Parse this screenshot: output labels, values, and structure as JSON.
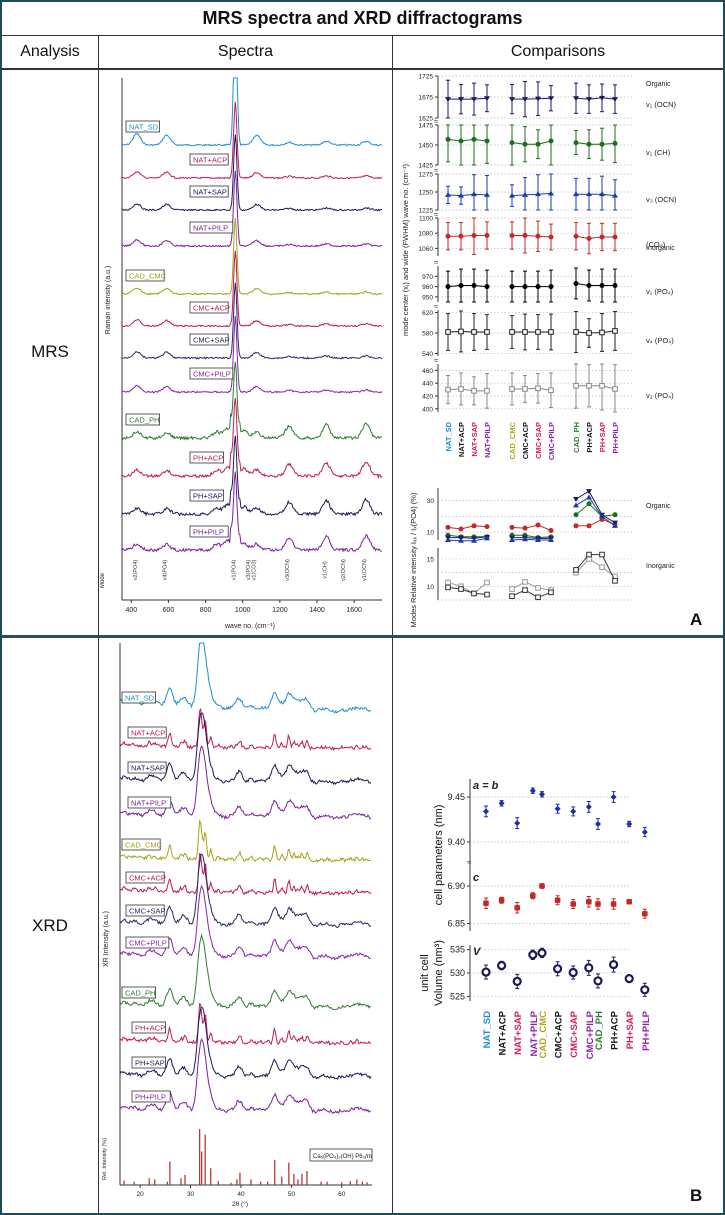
{
  "table": {
    "title": "MRS spectra and XRD diffractograms",
    "columns": [
      "Analysis",
      "Spectra",
      "Comparisons"
    ],
    "rows": [
      {
        "analysis": "MRS",
        "panel": "A"
      },
      {
        "analysis": "XRD",
        "panel": "B"
      }
    ]
  },
  "colors": {
    "NAT_SD": "#1f8fcf",
    "NAT+ACP": "#c2185b",
    "NAT+SAP": "#1a1a55",
    "NAT+PILP": "#7b1fa2",
    "CAD_CMC": "#a3a31a",
    "CMC+ACP": "#c2185b",
    "CMC+SAP": "#2a2a66",
    "CMC+PILP": "#8e24aa",
    "CAD_PH": "#2e7d32",
    "PH+ACP": "#c2185b",
    "PH+SAP": "#1a1a55",
    "PH+PILP": "#7b1fa2",
    "label_NAT_SD": "#1f8fcf",
    "label_ACP": "#1a1a1a",
    "label_SAP": "#d81b60",
    "label_PILP": "#8e24aa",
    "label_CAD_CMC": "#b3a51a",
    "label_CAD_PH": "#2e7d32"
  },
  "chart_data": [
    {
      "id": "mrs-spectra",
      "type": "line",
      "title": "",
      "xlabel": "wave no. (cm⁻¹)",
      "ylabel": "Raman intensity (a.u.)",
      "xlim": [
        350,
        1750
      ],
      "xticks": [
        400,
        600,
        800,
        1000,
        1200,
        1400,
        1600
      ],
      "series_labels": [
        "NAT_SD",
        "NAT+ACP",
        "NAT+SAP",
        "NAT+PILP",
        "CAD_CMC",
        "CMC+ACP",
        "CMC+SAP",
        "CMC+PILP",
        "CAD_PH",
        "PH+ACP",
        "PH+SAP",
        "PH+PILP"
      ],
      "peaks": {
        "mineral": [
          {
            "x": 430,
            "h": 0.25
          },
          {
            "x": 590,
            "h": 0.22
          },
          {
            "x": 960,
            "h": 1.0
          },
          {
            "x": 1075,
            "h": 0.22
          },
          {
            "x": 1250,
            "h": 0.06
          },
          {
            "x": 1450,
            "h": 0.08
          },
          {
            "x": 1665,
            "h": 0.08
          }
        ],
        "organic": [
          {
            "x": 430,
            "h": 0.25
          },
          {
            "x": 590,
            "h": 0.22
          },
          {
            "x": 860,
            "h": 0.25
          },
          {
            "x": 920,
            "h": 0.4
          },
          {
            "x": 960,
            "h": 1.0
          },
          {
            "x": 1005,
            "h": 0.3
          },
          {
            "x": 1075,
            "h": 0.25
          },
          {
            "x": 1250,
            "h": 0.5
          },
          {
            "x": 1450,
            "h": 0.55
          },
          {
            "x": 1665,
            "h": 0.6
          }
        ]
      },
      "mode_label": "Mode",
      "mode_markers": [
        {
          "x": 430,
          "label": "v2(PO4)"
        },
        {
          "x": 590,
          "label": "v4(PO4)"
        },
        {
          "x": 960,
          "label": "v1(PO4)"
        },
        {
          "x": 1040,
          "label": "v3(PO4)"
        },
        {
          "x": 1070,
          "label": "v1(CO3)"
        },
        {
          "x": 1250,
          "label": "v3(OCN)"
        },
        {
          "x": 1450,
          "label": "v1(CH)"
        },
        {
          "x": 1550,
          "label": "v2(OCN)"
        },
        {
          "x": 1665,
          "label": "v1(OCN)"
        }
      ]
    },
    {
      "id": "mrs-mode-centers",
      "type": "scatter",
      "ylabel": "mode center (xⱼ) and wide (FWHM) wave no. (cm⁻¹)",
      "categories": [
        "NAT_SD",
        "NAT+ACP",
        "NAT+SAP",
        "NAT+PILP",
        "CAD_CMC",
        "CMC+ACP",
        "CMC+SAP",
        "CMC+PILP",
        "CAD_PH",
        "PH+ACP",
        "PH+SAP",
        "PH+PILP"
      ],
      "group_headers": {
        "organic": "Organic",
        "inorganic": "Inorganic"
      },
      "panels": [
        {
          "name": "v₁ (OCN)",
          "color": "#1a1a66",
          "marker": "triangle-down",
          "ylim": [
            1625,
            1725
          ],
          "yticks": [
            1625,
            1675,
            1725
          ],
          "values": [
            1670,
            1670,
            1670,
            1672,
            1670,
            1670,
            1671,
            1672,
            1672,
            1670,
            1673,
            1670
          ],
          "errors": [
            45,
            35,
            38,
            32,
            35,
            42,
            40,
            30,
            36,
            34,
            33,
            34
          ]
        },
        {
          "name": "v₁ (CH)",
          "color": "#1b6e1b",
          "marker": "circle",
          "ylim": [
            1425,
            1475
          ],
          "yticks": [
            1425,
            1450,
            1475
          ],
          "values": [
            1457,
            1455,
            1457,
            1455,
            1453,
            1451,
            1451,
            1455,
            1453,
            1451,
            1451,
            1452
          ],
          "errors": [
            28,
            33,
            35,
            28,
            37,
            22,
            18,
            30,
            15,
            18,
            20,
            24
          ]
        },
        {
          "name": "v₃ (OCN)",
          "color": "#1a3ca8",
          "marker": "triangle-up",
          "ylim": [
            1225,
            1275
          ],
          "yticks": [
            1225,
            1250,
            1275
          ],
          "values": [
            1246,
            1245,
            1247,
            1246,
            1245,
            1246,
            1247,
            1248,
            1247,
            1247,
            1247,
            1245
          ],
          "errors": [
            12,
            12,
            27,
            27,
            15,
            24,
            27,
            30,
            22,
            22,
            25,
            22
          ]
        },
        {
          "name": "(CO₃)",
          "color": "#c62828",
          "marker": "circle",
          "ylim": [
            1050,
            1100
          ],
          "yticks": [
            1060,
            1080,
            1100
          ],
          "values": [
            1076,
            1076,
            1077,
            1077,
            1077,
            1077,
            1076,
            1075,
            1076,
            1073,
            1075,
            1075
          ],
          "errors": [
            18,
            18,
            25,
            18,
            18,
            23,
            20,
            17,
            18,
            20,
            18,
            18
          ]
        },
        {
          "name": "v₁ (PO₄)",
          "color": "#000000",
          "marker": "circle",
          "ylim": [
            945,
            980
          ],
          "yticks": [
            950,
            960,
            970
          ],
          "values": [
            960,
            961,
            961,
            960,
            960,
            960,
            960,
            960,
            963,
            961,
            961,
            961
          ],
          "errors": [
            15,
            16,
            16,
            16,
            15,
            15,
            15,
            16,
            15,
            15,
            16,
            16
          ]
        },
        {
          "name": "v₄ (PO₄)",
          "color": "#222222",
          "marker": "square-open",
          "ylim": [
            535,
            625
          ],
          "yticks": [
            540,
            580,
            620
          ],
          "values": [
            582,
            583,
            582,
            582,
            582,
            582,
            582,
            582,
            582,
            580,
            581,
            584
          ],
          "errors": [
            36,
            40,
            36,
            34,
            32,
            35,
            34,
            35,
            40,
            28,
            37,
            38
          ]
        },
        {
          "name": "v₂ (PO₄)",
          "color": "#888888",
          "marker": "square-open",
          "ylim": [
            395,
            470
          ],
          "yticks": [
            400,
            420,
            440,
            460
          ],
          "values": [
            430,
            431,
            428,
            428,
            431,
            431,
            432,
            429,
            436,
            436,
            436,
            431
          ],
          "errors": [
            22,
            25,
            22,
            27,
            25,
            21,
            23,
            27,
            35,
            33,
            38,
            38
          ]
        }
      ]
    },
    {
      "id": "mrs-relative-intensity",
      "type": "line",
      "ylabel": "Modes Relative intensity Iₓₓ / Iₓ(PO4) (%)",
      "categories": [
        "NAT_SD",
        "NAT+ACP",
        "NAT+SAP",
        "NAT+PILP",
        "CAD_CMC",
        "CMC+ACP",
        "CMC+SAP",
        "CMC+PILP",
        "CAD_PH",
        "PH+ACP",
        "PH+SAP",
        "PH+PILP"
      ],
      "panels": [
        {
          "name": "Organic",
          "ylim": [
            5,
            38
          ],
          "yticks": [
            10,
            30
          ],
          "grid": [
            10,
            20,
            30
          ],
          "series": [
            {
              "name": "CO3",
              "color": "#c62828",
              "marker": "circle",
              "values": [
                13,
                12,
                14,
                13.5,
                13,
                12.5,
                14.5,
                11,
                14,
                14,
                18,
                15
              ]
            },
            {
              "name": "v1(CH)",
              "color": "#1b6e1b",
              "marker": "circle",
              "values": [
                8,
                7,
                7,
                7,
                8,
                8,
                6.5,
                7,
                21,
                28,
                20,
                21
              ]
            },
            {
              "name": "v1(OCN)",
              "color": "#1a1a66",
              "marker": "triangle-down",
              "values": [
                6.5,
                6.5,
                6,
                7,
                6.5,
                6.5,
                6,
                6,
                31,
                36,
                21,
                16
              ]
            },
            {
              "name": "v3(OCN)",
              "color": "#1a3ca8",
              "marker": "triangle-up",
              "values": [
                5,
                4.5,
                4.5,
                6,
                5,
                5.5,
                5,
                5,
                27,
                32,
                20,
                14
              ]
            }
          ]
        },
        {
          "name": "Inorganic",
          "ylim": [
            7.5,
            17
          ],
          "yticks": [
            10,
            15
          ],
          "grid": [
            7.5,
            10,
            12.5,
            15
          ],
          "series": [
            {
              "name": "v2(PO4)",
              "color": "#999999",
              "marker": "square-open",
              "values": [
                10.7,
                10,
                8.7,
                10.7,
                9.5,
                10.8,
                9.7,
                9.3,
                12.5,
                15,
                13.5,
                11.8
              ]
            },
            {
              "name": "v4(PO4)",
              "color": "#333333",
              "marker": "square-open",
              "values": [
                9.8,
                9.5,
                8.7,
                8.5,
                8.2,
                9.3,
                8,
                8.9,
                13,
                15.8,
                15.8,
                11
              ]
            }
          ]
        }
      ]
    },
    {
      "id": "xrd-diffractograms",
      "type": "line",
      "xlabel": "2θ (°)",
      "ylabel": "XR Intensity (a.u.)",
      "xlim": [
        16,
        66
      ],
      "xticks": [
        20,
        30,
        40,
        50,
        60
      ],
      "series_labels": [
        "NAT_SD",
        "NAT+ACP",
        "NAT+SAP",
        "NAT+PILP",
        "CAD_CMC",
        "CMC+ACP",
        "CMC+SAP",
        "CMC+PILP",
        "CAD_PH",
        "PH+ACP",
        "PH+SAP",
        "PH+PILP"
      ],
      "reference": {
        "label": "Ca₅(PO₄)₃(OH) P6₃/m",
        "ylabel": "Rel. Intensity (%)",
        "lines": [
          {
            "x": 16.8,
            "h": 0.08
          },
          {
            "x": 18.8,
            "h": 0.06
          },
          {
            "x": 21.8,
            "h": 0.12
          },
          {
            "x": 22.9,
            "h": 0.1
          },
          {
            "x": 25.4,
            "h": 0.06
          },
          {
            "x": 25.9,
            "h": 0.42
          },
          {
            "x": 28.1,
            "h": 0.12
          },
          {
            "x": 28.9,
            "h": 0.18
          },
          {
            "x": 31.8,
            "h": 1.0
          },
          {
            "x": 32.2,
            "h": 0.6
          },
          {
            "x": 32.9,
            "h": 0.9
          },
          {
            "x": 34.0,
            "h": 0.3
          },
          {
            "x": 35.5,
            "h": 0.07
          },
          {
            "x": 38.0,
            "h": 0.04
          },
          {
            "x": 39.2,
            "h": 0.1
          },
          {
            "x": 39.8,
            "h": 0.22
          },
          {
            "x": 42.0,
            "h": 0.1
          },
          {
            "x": 43.9,
            "h": 0.06
          },
          {
            "x": 45.3,
            "h": 0.06
          },
          {
            "x": 46.7,
            "h": 0.45
          },
          {
            "x": 48.1,
            "h": 0.15
          },
          {
            "x": 49.5,
            "h": 0.4
          },
          {
            "x": 50.5,
            "h": 0.2
          },
          {
            "x": 51.3,
            "h": 0.1
          },
          {
            "x": 52.1,
            "h": 0.2
          },
          {
            "x": 53.1,
            "h": 0.25
          },
          {
            "x": 55.9,
            "h": 0.06
          },
          {
            "x": 57.1,
            "h": 0.06
          },
          {
            "x": 60.0,
            "h": 0.05
          },
          {
            "x": 61.7,
            "h": 0.07
          },
          {
            "x": 63.0,
            "h": 0.1
          },
          {
            "x": 64.1,
            "h": 0.06
          },
          {
            "x": 65.0,
            "h": 0.05
          }
        ]
      }
    },
    {
      "id": "xrd-cell-parameters",
      "type": "scatter",
      "categories": [
        "NAT_SD",
        "NAT+ACP",
        "NAT+SAP",
        "NAT+PILP",
        "CAD_CMC",
        "CMC+ACP",
        "CMC+SAP",
        "CMC+PILP",
        "CAD_PH",
        "PH+ACP",
        "PH+SAP",
        "PH+PILP"
      ],
      "panels": [
        {
          "name": "a = b",
          "ylabel": "cell parameters (nm)",
          "color": "#1a2ea8",
          "marker": "diamond",
          "ylim": [
            9.39,
            9.47
          ],
          "yticks": [
            9.4,
            9.45
          ],
          "values": [
            9.434,
            9.443,
            9.421,
            9.457,
            9.453,
            9.437,
            9.434,
            9.439,
            9.42,
            9.45,
            9.42,
            9.411
          ],
          "errors": [
            0.006,
            0.003,
            0.006,
            0.003,
            0.003,
            0.005,
            0.005,
            0.006,
            0.006,
            0.006,
            0.003,
            0.005
          ]
        },
        {
          "name": "c",
          "ylabel": "cell parameters (nm)",
          "color": "#c62828",
          "marker": "square",
          "ylim": [
            6.84,
            6.92
          ],
          "yticks": [
            6.85,
            6.9
          ],
          "values": [
            6.877,
            6.881,
            6.871,
            6.887,
            6.9,
            6.881,
            6.876,
            6.879,
            6.876,
            6.876,
            6.879,
            6.863
          ],
          "errors": [
            0.007,
            0.004,
            0.007,
            0.004,
            0.003,
            0.006,
            0.006,
            0.007,
            0.007,
            0.007,
            0.003,
            0.006
          ]
        },
        {
          "name": "V",
          "ylabel": "unit cell Volume (nm³)",
          "color": "#1a1a55",
          "marker": "circle-open",
          "ylim": [
            524,
            536
          ],
          "yticks": [
            525,
            530,
            535
          ],
          "values": [
            530.2,
            531.6,
            528.2,
            533.9,
            534.3,
            530.9,
            530.1,
            531.1,
            528.3,
            531.8,
            528.8,
            526.4
          ],
          "errors": [
            1.5,
            0.9,
            1.5,
            1.0,
            1.0,
            1.5,
            1.4,
            1.6,
            1.5,
            1.6,
            0.8,
            1.4
          ]
        }
      ]
    }
  ]
}
